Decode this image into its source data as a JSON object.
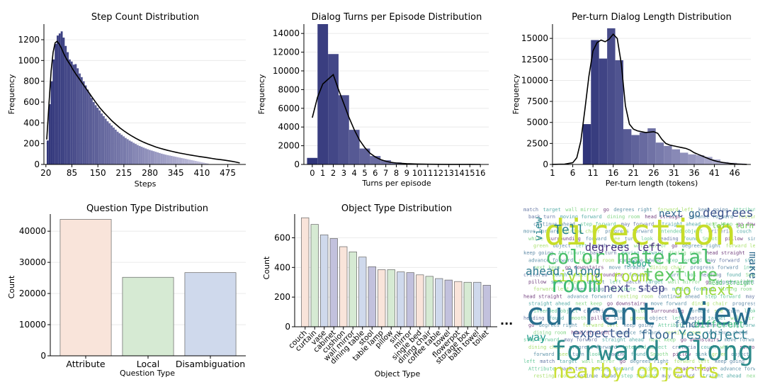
{
  "chart_data": [
    {
      "id": "steps",
      "type": "bar",
      "title": "Step Count Distribution",
      "xlabel": "Steps",
      "ylabel": "Frequency",
      "xlim": [
        15,
        520
      ],
      "ylim": [
        0,
        1350
      ],
      "xticks": [
        20,
        85,
        150,
        215,
        280,
        345,
        410,
        475
      ],
      "yticks": [
        0,
        200,
        400,
        600,
        800,
        1000,
        1200
      ],
      "bin_start": 22,
      "bin_width": 5,
      "values": [
        230,
        580,
        800,
        1010,
        1160,
        1240,
        1260,
        1280,
        1220,
        1140,
        1080,
        1010,
        990,
        960,
        965,
        925,
        875,
        840,
        800,
        760,
        720,
        680,
        640,
        600,
        570,
        545,
        520,
        490,
        465,
        440,
        415,
        395,
        375,
        355,
        335,
        315,
        300,
        285,
        270,
        255,
        243,
        230,
        220,
        208,
        197,
        187,
        178,
        170,
        162,
        154,
        147,
        140,
        134,
        128,
        122,
        116,
        110,
        104,
        99,
        94,
        90,
        86,
        82,
        78,
        74,
        70,
        66,
        62,
        58,
        54,
        50,
        46,
        42,
        38,
        34,
        30,
        26,
        22,
        18,
        14,
        10
      ],
      "kde": [
        [
          22,
          240
        ],
        [
          28,
          600
        ],
        [
          33,
          900
        ],
        [
          38,
          1080
        ],
        [
          43,
          1170
        ],
        [
          48,
          1185
        ],
        [
          53,
          1160
        ],
        [
          58,
          1125
        ],
        [
          63,
          1080
        ],
        [
          68,
          1040
        ],
        [
          73,
          1005
        ],
        [
          78,
          975
        ],
        [
          83,
          945
        ],
        [
          88,
          910
        ],
        [
          95,
          870
        ],
        [
          105,
          815
        ],
        [
          115,
          760
        ],
        [
          125,
          705
        ],
        [
          135,
          650
        ],
        [
          145,
          595
        ],
        [
          155,
          545
        ],
        [
          165,
          500
        ],
        [
          175,
          460
        ],
        [
          185,
          420
        ],
        [
          195,
          385
        ],
        [
          205,
          352
        ],
        [
          215,
          323
        ],
        [
          225,
          297
        ],
        [
          235,
          273
        ],
        [
          245,
          251
        ],
        [
          255,
          231
        ],
        [
          265,
          213
        ],
        [
          275,
          197
        ],
        [
          285,
          182
        ],
        [
          295,
          168
        ],
        [
          305,
          156
        ],
        [
          315,
          145
        ],
        [
          325,
          135
        ],
        [
          335,
          126
        ],
        [
          345,
          117
        ],
        [
          355,
          109
        ],
        [
          365,
          102
        ],
        [
          375,
          95
        ],
        [
          385,
          88
        ],
        [
          395,
          82
        ],
        [
          405,
          76
        ],
        [
          415,
          70
        ],
        [
          425,
          64
        ],
        [
          435,
          58
        ],
        [
          445,
          52
        ],
        [
          455,
          47
        ],
        [
          465,
          42
        ],
        [
          475,
          36
        ],
        [
          485,
          30
        ],
        [
          495,
          23
        ],
        [
          505,
          14
        ]
      ]
    },
    {
      "id": "turns",
      "type": "bar",
      "title": "Dialog Turns per Episode Distribution",
      "xlabel": "Turns per episode",
      "ylabel": "Frequency",
      "xlim": [
        -0.8,
        16.8
      ],
      "ylim": [
        0,
        15000
      ],
      "categories": [
        "0",
        "1",
        "2",
        "3",
        "4",
        "5",
        "6",
        "7",
        "8",
        "9",
        "10",
        "11",
        "12",
        "13",
        "14",
        "15",
        "16"
      ],
      "yticks": [
        0,
        2000,
        4000,
        6000,
        8000,
        10000,
        12000,
        14000
      ],
      "values": [
        700,
        15000,
        11800,
        7400,
        3700,
        1700,
        900,
        450,
        220,
        120,
        60,
        30,
        15,
        8,
        5,
        3,
        2
      ],
      "kde": [
        [
          0,
          5000
        ],
        [
          0.5,
          7200
        ],
        [
          1,
          8600
        ],
        [
          1.5,
          9100
        ],
        [
          2,
          9600
        ],
        [
          2.5,
          8000
        ],
        [
          3,
          6500
        ],
        [
          3.5,
          5000
        ],
        [
          4,
          3700
        ],
        [
          4.5,
          2600
        ],
        [
          5,
          1800
        ],
        [
          5.5,
          1200
        ],
        [
          6,
          800
        ],
        [
          6.5,
          520
        ],
        [
          7,
          340
        ],
        [
          7.5,
          220
        ],
        [
          8,
          150
        ],
        [
          9,
          80
        ],
        [
          10,
          45
        ],
        [
          11,
          25
        ],
        [
          12,
          15
        ],
        [
          13,
          10
        ],
        [
          14,
          6
        ],
        [
          15,
          4
        ],
        [
          16,
          2
        ]
      ]
    },
    {
      "id": "length",
      "type": "bar",
      "title": "Per-turn Dialog Length Distribution",
      "xlabel": "Per-turn length (tokens)",
      "ylabel": "Frequency",
      "xlim": [
        1,
        50
      ],
      "ylim": [
        0,
        16700
      ],
      "xticks": [
        1,
        6,
        11,
        16,
        21,
        26,
        31,
        36,
        41,
        46
      ],
      "yticks": [
        0,
        2500,
        5000,
        7500,
        10000,
        12500,
        15000
      ],
      "bin_start": 8.5,
      "bin_width": 2,
      "values": [
        4800,
        14800,
        12600,
        16200,
        12400,
        4200,
        3500,
        3800,
        4300,
        2600,
        2200,
        1800,
        1400,
        1200,
        1100,
        900,
        600,
        300,
        200,
        120
      ],
      "kde": [
        [
          1,
          10
        ],
        [
          4,
          40
        ],
        [
          6,
          200
        ],
        [
          7,
          800
        ],
        [
          8,
          2800
        ],
        [
          9,
          6500
        ],
        [
          10,
          10500
        ],
        [
          11,
          13500
        ],
        [
          12,
          14500
        ],
        [
          13,
          14800
        ],
        [
          14,
          14600
        ],
        [
          15,
          14900
        ],
        [
          16,
          15500
        ],
        [
          17,
          15000
        ],
        [
          18,
          12000
        ],
        [
          19,
          7000
        ],
        [
          20,
          4800
        ],
        [
          21,
          4200
        ],
        [
          22,
          4000
        ],
        [
          23,
          3900
        ],
        [
          24,
          3800
        ],
        [
          25,
          3850
        ],
        [
          26,
          3900
        ],
        [
          27,
          3700
        ],
        [
          28,
          3000
        ],
        [
          29,
          2500
        ],
        [
          30,
          2300
        ],
        [
          31,
          2200
        ],
        [
          32,
          2100
        ],
        [
          33,
          2000
        ],
        [
          34,
          1900
        ],
        [
          35,
          1700
        ],
        [
          36,
          1400
        ],
        [
          37,
          1200
        ],
        [
          38,
          1000
        ],
        [
          39,
          800
        ],
        [
          40,
          600
        ],
        [
          41,
          450
        ],
        [
          42,
          330
        ],
        [
          43,
          240
        ],
        [
          44,
          170
        ],
        [
          45,
          110
        ],
        [
          46,
          70
        ],
        [
          47,
          40
        ],
        [
          48,
          20
        ],
        [
          49,
          10
        ]
      ]
    },
    {
      "id": "qtype",
      "type": "bar",
      "title": "Question Type Distribution",
      "xlabel": "Question Type",
      "ylabel": "Count",
      "ylim": [
        0,
        45500
      ],
      "yticks": [
        0,
        10000,
        20000,
        30000,
        40000
      ],
      "categories": [
        "Attribute",
        "Local",
        "Disambiguation"
      ],
      "values": [
        43800,
        25200,
        26700
      ],
      "colors": [
        "#f9e4da",
        "#d6ead3",
        "#cfd9ec"
      ]
    },
    {
      "id": "otype",
      "type": "bar",
      "title": "Object Type Distribution",
      "xlabel": "Object Type",
      "ylabel": "Count",
      "ylim": [
        0,
        760
      ],
      "yticks": [
        0,
        200,
        400,
        600
      ],
      "categories": [
        "couch",
        "curtain",
        "vase",
        "cabinet",
        "cushion",
        "wall mirror",
        "dining table",
        "stool",
        "table lamp",
        "pillow",
        "sink",
        "mirror",
        "single bed",
        "dining chair",
        "coffee table",
        "towel",
        "flowerpot",
        "storage box",
        "bath towel",
        "toilet"
      ],
      "values": [
        735,
        690,
        620,
        595,
        540,
        505,
        470,
        405,
        385,
        385,
        370,
        365,
        350,
        340,
        325,
        315,
        305,
        300,
        300,
        280
      ],
      "colors": [
        "#f9e4da",
        "#d6ead3",
        "#cfd9ec",
        "#c2c1dd"
      ],
      "ellipsis": "..."
    }
  ],
  "wordcloud": {
    "big": [
      {
        "text": "direction",
        "color": "#c7dd2a"
      },
      {
        "text": "current view",
        "color": "#2a6f8e"
      },
      {
        "text": "forward along",
        "color": "#2c8a8a"
      },
      {
        "text": "color material",
        "color": "#4bbf6b"
      },
      {
        "text": "room",
        "color": "#3fbb75"
      },
      {
        "text": "texture",
        "color": "#5cc863"
      },
      {
        "text": "nearby objects",
        "color": "#c9df34"
      },
      {
        "text": "living room",
        "color": "#a8db34"
      },
      {
        "text": "go next",
        "color": "#9bd93c"
      },
      {
        "text": "expected",
        "color": "#39568c"
      },
      {
        "text": "floor",
        "color": "#33638d"
      },
      {
        "text": "Yesobject",
        "color": "#2a7b8e"
      },
      {
        "text": "Tell",
        "color": "#26828e"
      },
      {
        "text": "next step",
        "color": "#414487"
      },
      {
        "text": "ahead along",
        "color": "#2a788e"
      },
      {
        "text": "degrees left",
        "color": "#472f7d"
      },
      {
        "text": "degrees",
        "color": "#3b528b"
      },
      {
        "text": "next go",
        "color": "#31688e"
      },
      {
        "text": "make",
        "color": "#2f6b8e"
      },
      {
        "text": "view",
        "color": "#25858e"
      },
      {
        "text": "way",
        "color": "#1f9a8a"
      },
      {
        "text": "find",
        "color": "#2d708e"
      },
      {
        "text": "different",
        "color": "#35b779"
      },
      {
        "text": "left turn",
        "color": "#6ece58"
      },
      {
        "text": "head straight",
        "color": "#52c569"
      },
      {
        "text": "stool",
        "color": "#20a386"
      }
    ],
    "small": [
      "match",
      "target",
      "wall mirror",
      "go",
      "degrees right",
      "forward left",
      "keep going",
      "Attribute",
      "back turn",
      "moving forward",
      "dining room",
      "head straight",
      "advance forward",
      "resting room",
      "continue ahead",
      "step forward",
      "may forward",
      "straight ahead",
      "next keep",
      "go downstairs",
      "move forward",
      "dining chair",
      "progress forward",
      "intended object",
      "criteria",
      "couch",
      "white",
      "surrounding",
      "forward",
      "see",
      "turn",
      "look",
      "heading",
      "found",
      "Smooth",
      "pillow",
      "sink",
      "green",
      "object",
      "left"
    ]
  }
}
